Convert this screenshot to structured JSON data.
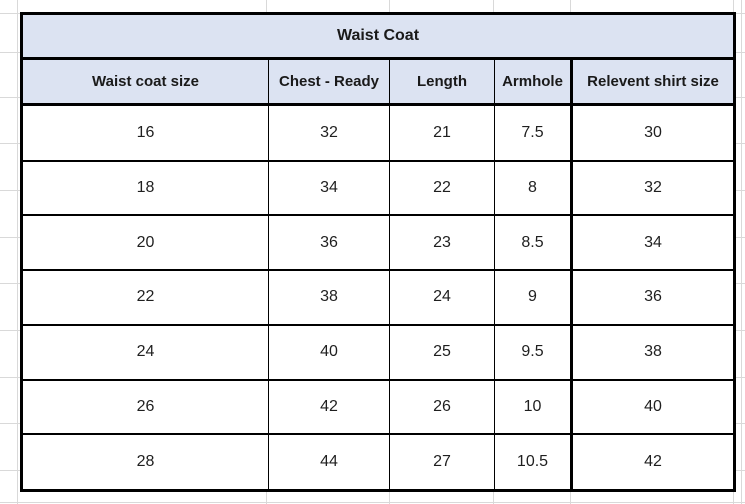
{
  "table": {
    "title": "Waist Coat",
    "columns": [
      "Waist coat size",
      "Chest - Ready",
      "Length",
      "Armhole",
      "Relevent shirt size"
    ],
    "rows": [
      [
        "16",
        "32",
        "21",
        "7.5",
        "30"
      ],
      [
        "18",
        "34",
        "22",
        "8",
        "32"
      ],
      [
        "20",
        "36",
        "23",
        "8.5",
        "34"
      ],
      [
        "22",
        "38",
        "24",
        "9",
        "36"
      ],
      [
        "24",
        "40",
        "25",
        "9.5",
        "38"
      ],
      [
        "26",
        "42",
        "26",
        "10",
        "40"
      ],
      [
        "28",
        "44",
        "27",
        "10.5",
        "42"
      ]
    ],
    "colors": {
      "header_bg": "#dce3f2",
      "cell_bg": "#ffffff",
      "border": "#000000",
      "gridline": "#d9d9d9",
      "text": "#1a1a1a"
    }
  }
}
